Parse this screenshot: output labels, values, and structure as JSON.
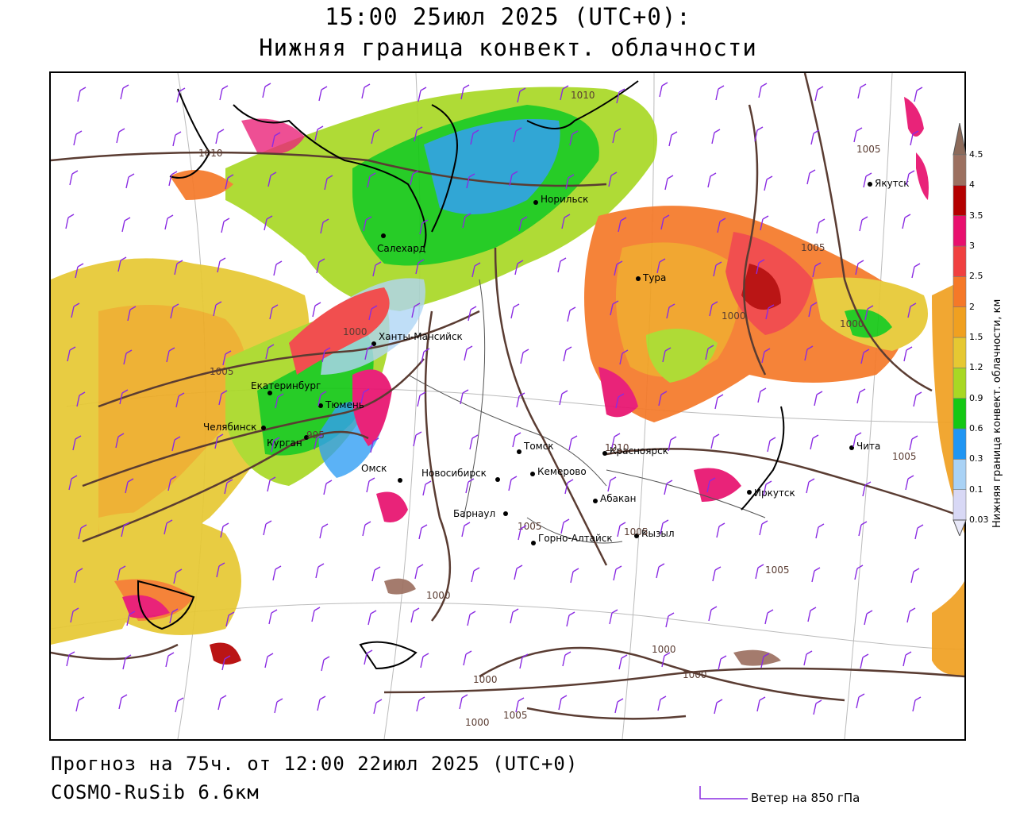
{
  "title": {
    "line1": "15:00 25июл 2025 (UTC+0):",
    "line2": "Нижняя граница конвект. облачности"
  },
  "footer": {
    "forecast": "Прогноз на 75ч. от 12:00 22июл 2025 (UTC+0)",
    "model": "COSMO-RuSib 6.6км"
  },
  "wind_legend": {
    "label": "Ветер на 850 гПа",
    "color": "#8a2be2"
  },
  "legend": {
    "title": "Нижняя граница конвект. облачности, км",
    "ticks": [
      "0.03",
      "0.1",
      "0.3",
      "0.6",
      "0.9",
      "1.2",
      "1.5",
      "2",
      "2.5",
      "3",
      "3.5",
      "4",
      "4.5"
    ],
    "colors": [
      "#d8d8f5",
      "#a9d2f5",
      "#2196f3",
      "#14c814",
      "#a8d824",
      "#e6c832",
      "#f0a020",
      "#f57828",
      "#f04040",
      "#e8106e",
      "#b40000",
      "#9c7060"
    ]
  },
  "cities": [
    {
      "name": "Норильск"
    },
    {
      "name": "Якутск"
    },
    {
      "name": "Салехард"
    },
    {
      "name": "Тура"
    },
    {
      "name": "Ханты-Мансийск"
    },
    {
      "name": "Екатеринбург"
    },
    {
      "name": "Тюмень"
    },
    {
      "name": "Челябинск"
    },
    {
      "name": "Курган"
    },
    {
      "name": "Омск"
    },
    {
      "name": "Томск"
    },
    {
      "name": "Красноярск"
    },
    {
      "name": "Новосибирск"
    },
    {
      "name": "Кемерово"
    },
    {
      "name": "Абакан"
    },
    {
      "name": "Барнаул"
    },
    {
      "name": "Горно-Алтайск"
    },
    {
      "name": "Кызыл"
    },
    {
      "name": "Иркутск"
    },
    {
      "name": "Чита"
    }
  ],
  "isobar_labels": [
    "1010",
    "1010",
    "1005",
    "1005",
    "1000",
    "1005",
    "1000",
    "995",
    "1010",
    "1005",
    "1005",
    "1000",
    "1005",
    "1005",
    "1000",
    "1000",
    "1000",
    "1000",
    "1005",
    "1000"
  ],
  "colors": {
    "isobar": "#5a3c32",
    "coast": "#000000",
    "border": "#555555"
  }
}
